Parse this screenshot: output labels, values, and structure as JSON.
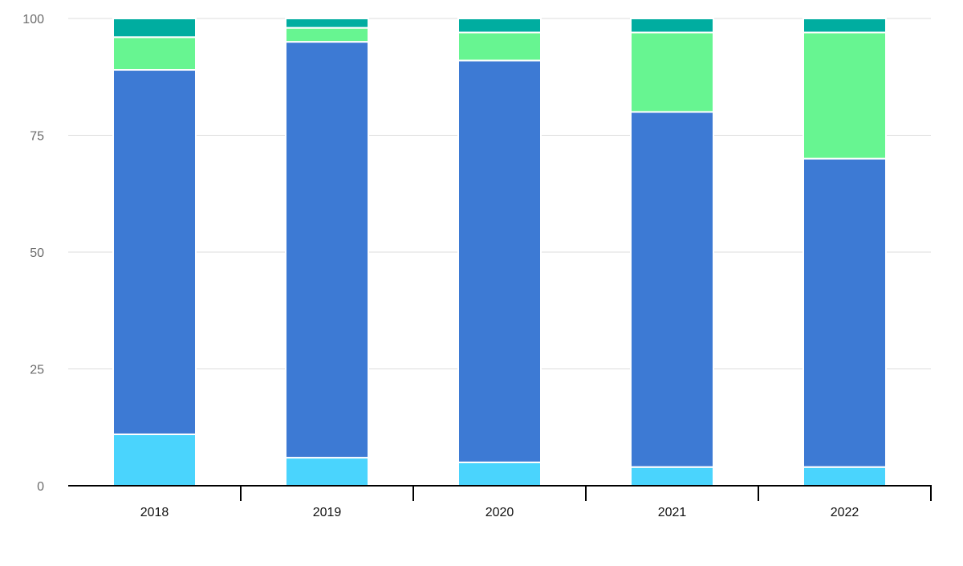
{
  "chart_data": {
    "type": "bar",
    "stacked": true,
    "categories": [
      "2018",
      "2019",
      "2020",
      "2021",
      "2022"
    ],
    "series": [
      {
        "color": "#4ad4fd",
        "values": [
          11,
          6,
          5,
          4,
          4
        ]
      },
      {
        "color": "#3d7ad4",
        "values": [
          78,
          89,
          86,
          76,
          66
        ]
      },
      {
        "color": "#67f591",
        "values": [
          7,
          3,
          6,
          17,
          27
        ]
      },
      {
        "color": "#00ada0",
        "values": [
          4,
          2,
          3,
          3,
          3
        ]
      }
    ],
    "title": "",
    "xlabel": "",
    "ylabel": "",
    "ylim": [
      0,
      100
    ],
    "yticks": [
      0,
      25,
      50,
      75,
      100
    ],
    "grid": true,
    "legend": "none"
  }
}
